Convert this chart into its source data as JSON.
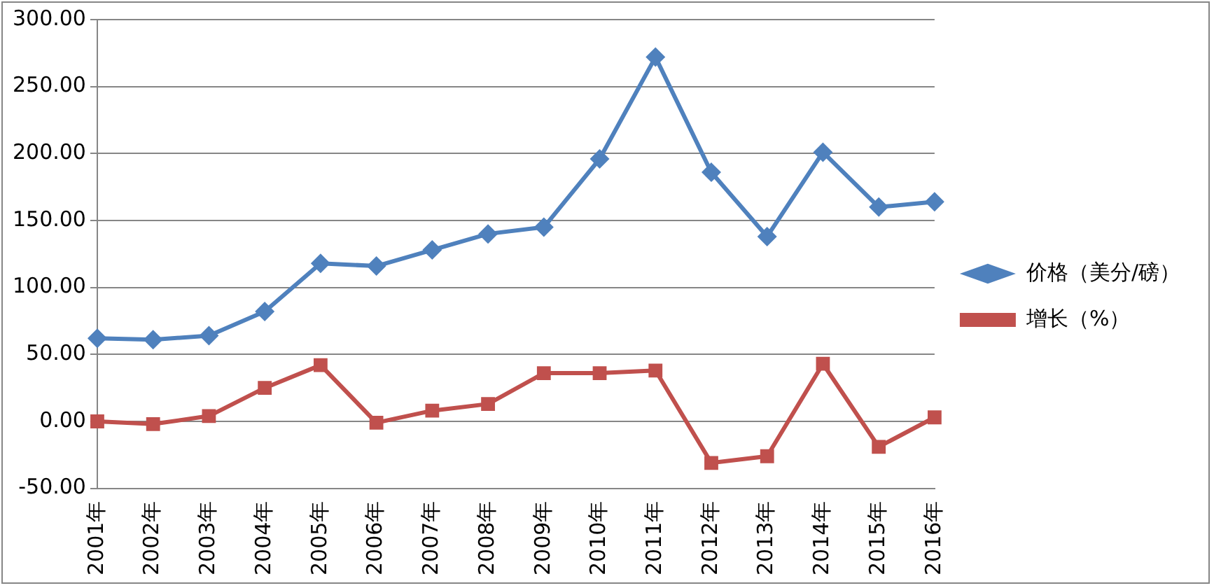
{
  "chart_data": {
    "type": "line",
    "categories": [
      "2001年",
      "2002年",
      "2003年",
      "2004年",
      "2005年",
      "2006年",
      "2007年",
      "2008年",
      "2009年",
      "2010年",
      "2011年",
      "2012年",
      "2013年",
      "2014年",
      "2015年",
      "2016年"
    ],
    "series": [
      {
        "name": "价格（美分/磅）",
        "color": "#4f81bd",
        "marker": "diamond",
        "values": [
          62,
          61,
          64,
          82,
          118,
          116,
          128,
          140,
          145,
          196,
          272,
          186,
          138,
          201,
          160,
          164
        ]
      },
      {
        "name": "增长（%）",
        "color": "#c0504d",
        "marker": "square",
        "values": [
          0,
          -2,
          4,
          25,
          42,
          -1,
          8,
          13,
          36,
          36,
          38,
          -31,
          -26,
          43,
          -19,
          3
        ]
      }
    ],
    "ylim": [
      -50,
      300
    ],
    "yticks": [
      {
        "value": -50,
        "label": "-50.00"
      },
      {
        "value": 0,
        "label": "0.00"
      },
      {
        "value": 50,
        "label": "50.00"
      },
      {
        "value": 100,
        "label": "100.00"
      },
      {
        "value": 150,
        "label": "150.00"
      },
      {
        "value": 200,
        "label": "200.00"
      },
      {
        "value": 250,
        "label": "250.00"
      },
      {
        "value": 300,
        "label": "300.00"
      }
    ],
    "grid": "y",
    "legend": "right",
    "line_style": "solid"
  }
}
